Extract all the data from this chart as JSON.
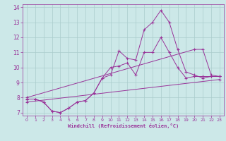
{
  "bg_color": "#cce8e8",
  "grid_color": "#aacccc",
  "line_color": "#993399",
  "marker": "+",
  "xlim": [
    -0.5,
    23.5
  ],
  "ylim": [
    6.8,
    14.2
  ],
  "xticks": [
    0,
    1,
    2,
    3,
    4,
    5,
    6,
    7,
    8,
    9,
    10,
    11,
    12,
    13,
    14,
    15,
    16,
    17,
    18,
    19,
    20,
    21,
    22,
    23
  ],
  "yticks": [
    7,
    8,
    9,
    10,
    11,
    12,
    13,
    14
  ],
  "xlabel": "Windchill (Refroidissement éolien,°C)",
  "series": [
    {
      "x": [
        0,
        1,
        2,
        3,
        4,
        5,
        6,
        7,
        8,
        9,
        10,
        11,
        12,
        13,
        14,
        15,
        16,
        17,
        18,
        19,
        20,
        21,
        22,
        23
      ],
      "y": [
        7.9,
        7.9,
        7.7,
        7.1,
        7.0,
        7.3,
        7.7,
        7.8,
        8.3,
        9.3,
        9.5,
        11.1,
        10.6,
        10.5,
        12.5,
        13.0,
        13.8,
        13.0,
        11.2,
        9.7,
        9.5,
        9.3,
        9.4,
        9.4
      ]
    },
    {
      "x": [
        0,
        1,
        2,
        3,
        4,
        5,
        6,
        7,
        8,
        9,
        10,
        11,
        12,
        13,
        14,
        15,
        16,
        17,
        18,
        19,
        20,
        21,
        22,
        23
      ],
      "y": [
        7.9,
        7.9,
        7.7,
        7.1,
        7.0,
        7.3,
        7.7,
        7.8,
        8.3,
        9.3,
        10.0,
        10.1,
        10.3,
        9.5,
        11.0,
        11.0,
        12.0,
        11.0,
        10.0,
        9.3,
        9.4,
        9.4,
        9.4,
        9.4
      ]
    },
    {
      "x": [
        0,
        20,
        21,
        22,
        23
      ],
      "y": [
        8.0,
        11.2,
        11.2,
        9.5,
        9.4
      ]
    },
    {
      "x": [
        0,
        23
      ],
      "y": [
        7.7,
        9.2
      ]
    }
  ]
}
